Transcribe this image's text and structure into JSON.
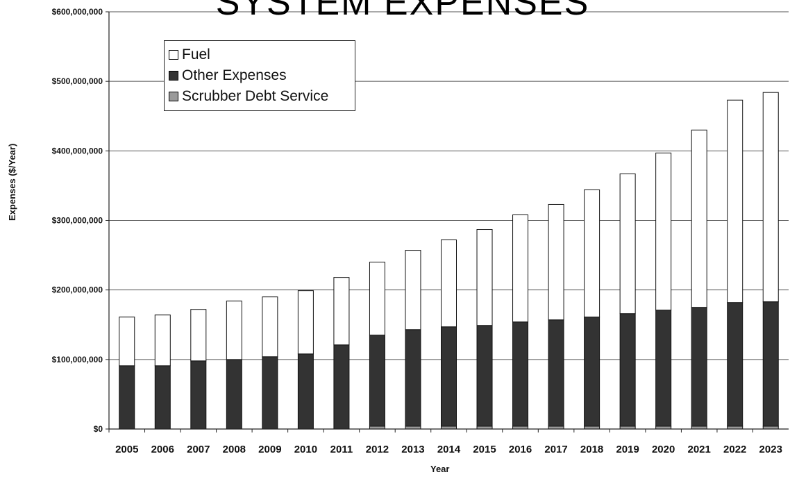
{
  "chart_data": {
    "type": "bar",
    "stacked": true,
    "title": "SYSTEM EXPENSES",
    "xlabel": "Year",
    "ylabel": "Expenses ($/Year)",
    "ylim": [
      0,
      600000000
    ],
    "yticks": [
      0,
      100000000,
      200000000,
      300000000,
      400000000,
      500000000,
      600000000
    ],
    "ytick_labels": [
      "$0",
      "$100,000,000",
      "$200,000,000",
      "$300,000,000",
      "$400,000,000",
      "$500,000,000",
      "$600,000,000"
    ],
    "grid": true,
    "legend_position": "top-left",
    "categories": [
      "2005",
      "2006",
      "2007",
      "2008",
      "2009",
      "2010",
      "2011",
      "2012",
      "2013",
      "2014",
      "2015",
      "2016",
      "2017",
      "2018",
      "2019",
      "2020",
      "2021",
      "2022",
      "2023"
    ],
    "series": [
      {
        "name": "Scrubber Debt Service",
        "color": "#9a9a9a",
        "values": [
          0,
          0,
          0,
          0,
          0,
          0,
          0,
          4000000,
          4000000,
          4000000,
          4000000,
          4000000,
          4000000,
          4000000,
          4000000,
          4000000,
          4000000,
          4000000,
          4000000
        ]
      },
      {
        "name": "Other Expenses",
        "color": "#333333",
        "values": [
          91000000,
          91000000,
          98000000,
          100000000,
          104000000,
          108000000,
          121000000,
          131000000,
          139000000,
          143000000,
          145000000,
          150000000,
          153000000,
          157000000,
          162000000,
          167000000,
          171000000,
          178000000,
          179000000
        ]
      },
      {
        "name": "Fuel",
        "color": "#ffffff",
        "values": [
          70000000,
          73000000,
          74000000,
          84000000,
          86000000,
          91000000,
          97000000,
          105000000,
          114000000,
          125000000,
          138000000,
          154000000,
          166000000,
          183000000,
          201000000,
          226000000,
          255000000,
          291000000,
          301000000
        ]
      }
    ],
    "legend_order": [
      "Fuel",
      "Other Expenses",
      "Scrubber Debt Service"
    ]
  }
}
